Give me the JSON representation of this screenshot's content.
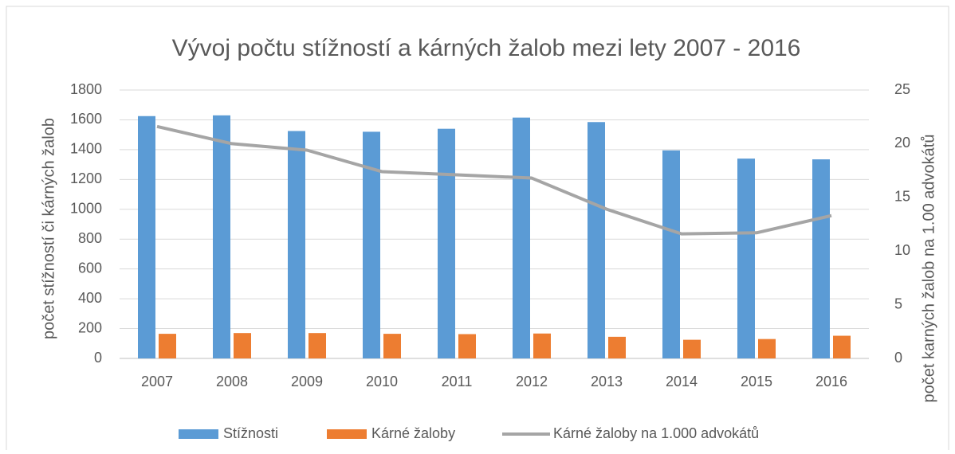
{
  "chart_data": {
    "type": "bar",
    "title": "Vývoj počtu stížností a kárných žalob mezi lety 2007 - 2016",
    "y_label": "počet stížností či kárných žalob",
    "y2_label": "počet karných žalob na 1.00 advokátů",
    "categories": [
      "2007",
      "2008",
      "2009",
      "2010",
      "2011",
      "2012",
      "2013",
      "2014",
      "2015",
      "2016"
    ],
    "series": [
      {
        "name": "Stížnosti",
        "type": "bar",
        "color": "#5b9bd5",
        "values": [
          1625,
          1630,
          1525,
          1520,
          1540,
          1615,
          1585,
          1395,
          1340,
          1335
        ]
      },
      {
        "name": "Kárné žaloby",
        "type": "bar",
        "color": "#ed7d31",
        "values": [
          165,
          170,
          170,
          165,
          163,
          167,
          145,
          125,
          130,
          152
        ]
      },
      {
        "name": "Kárné žaloby na 1.000 advokátů",
        "type": "line",
        "axis": "y2",
        "color": "#a5a5a5",
        "values": [
          21.6,
          20.0,
          19.4,
          17.4,
          17.1,
          16.8,
          13.9,
          11.6,
          11.7,
          13.3
        ]
      }
    ],
    "ylim": [
      0,
      1800
    ],
    "yticks": [
      0,
      200,
      400,
      600,
      800,
      1000,
      1200,
      1400,
      1600,
      1800
    ],
    "y2lim": [
      0,
      25
    ],
    "y2ticks": [
      0,
      5,
      10,
      15,
      20,
      25
    ],
    "grid": true,
    "legend": "bottom"
  }
}
